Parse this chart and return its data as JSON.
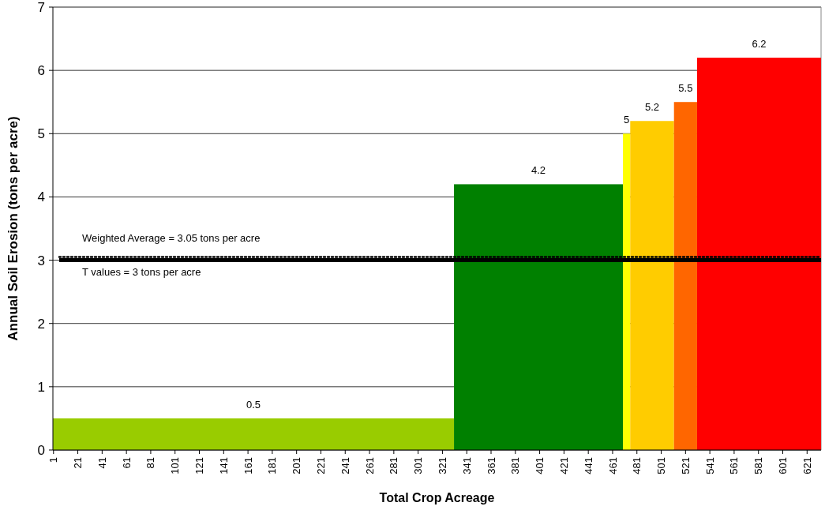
{
  "chart_data": {
    "type": "histogram",
    "xlabel": "Total Crop Acreage",
    "ylabel": "Annual Soil Erosion (tons per acre)",
    "bins": [
      0.5,
      330.5,
      469.5,
      475.5,
      511.5,
      530.5,
      632.5
    ],
    "values": [
      0.5,
      4.2,
      5,
      5.2,
      5.5,
      6.2
    ],
    "colors": [
      "#99cc00",
      "#008000",
      "#ffff00",
      "#ffcc00",
      "#ff6600",
      "#ff0000"
    ],
    "data_labels": true,
    "xlim": [
      0.5,
      632.5
    ],
    "xticks": [
      1,
      21,
      41,
      61,
      81,
      101,
      121,
      141,
      161,
      181,
      201,
      221,
      241,
      261,
      281,
      301,
      321,
      341,
      361,
      381,
      401,
      421,
      441,
      461,
      481,
      501,
      521,
      541,
      561,
      581,
      601,
      621
    ],
    "ylim": [
      0,
      7
    ],
    "yticks": [
      0,
      1,
      2,
      3,
      4,
      5,
      6,
      7
    ],
    "grid": "y",
    "ref_lines": [
      {
        "axis": "y",
        "value": 3.05,
        "label": "Weighted Average = 3.05 tons per acre",
        "color": "#000000",
        "line_style": "dotted"
      },
      {
        "axis": "y",
        "value": 3,
        "label": "T values = 3 tons per acre",
        "color": "#000000",
        "line_style": "solid"
      }
    ]
  }
}
